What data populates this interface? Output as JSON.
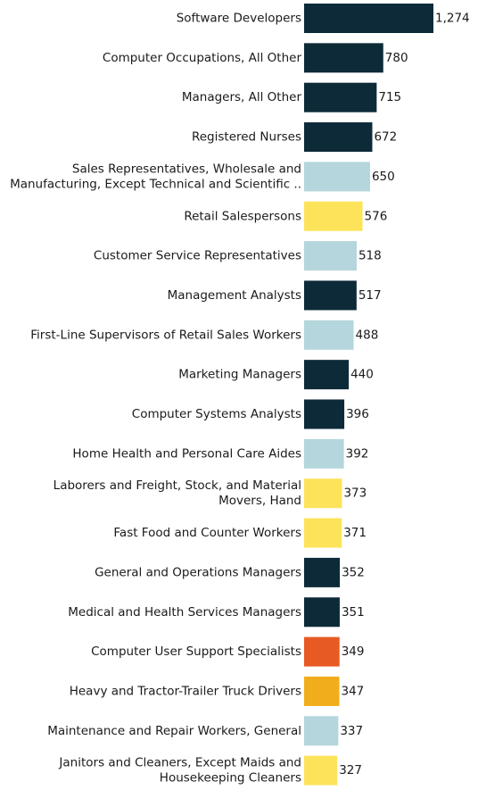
{
  "chart_data": {
    "type": "bar",
    "orientation": "horizontal",
    "categories": [
      [
        "Software Developers"
      ],
      [
        "Computer Occupations, All Other"
      ],
      [
        "Managers, All Other"
      ],
      [
        "Registered Nurses"
      ],
      [
        "Sales Representatives, Wholesale and",
        "Manufacturing, Except Technical and Scientific .."
      ],
      [
        "Retail Salespersons"
      ],
      [
        "Customer Service Representatives"
      ],
      [
        "Management Analysts"
      ],
      [
        "First-Line Supervisors of Retail Sales Workers"
      ],
      [
        "Marketing Managers"
      ],
      [
        "Computer Systems Analysts"
      ],
      [
        "Home Health and Personal Care Aides"
      ],
      [
        "Laborers and Freight, Stock, and Material",
        "Movers, Hand"
      ],
      [
        "Fast Food and Counter Workers"
      ],
      [
        "General and Operations Managers"
      ],
      [
        "Medical and Health Services Managers"
      ],
      [
        "Computer User Support Specialists"
      ],
      [
        "Heavy and Tractor-Trailer Truck Drivers"
      ],
      [
        "Maintenance and Repair Workers, General"
      ],
      [
        "Janitors and Cleaners, Except Maids and",
        "Housekeeping Cleaners"
      ]
    ],
    "values": [
      1274,
      780,
      715,
      672,
      650,
      576,
      518,
      517,
      488,
      440,
      396,
      392,
      373,
      371,
      352,
      351,
      349,
      347,
      337,
      327
    ],
    "value_labels": [
      "1,274",
      "780",
      "715",
      "672",
      "650",
      "576",
      "518",
      "517",
      "488",
      "440",
      "396",
      "392",
      "373",
      "371",
      "352",
      "351",
      "349",
      "347",
      "337",
      "327"
    ],
    "bar_colors": [
      "#0d2a38",
      "#0d2a38",
      "#0d2a38",
      "#0d2a38",
      "#b4d6dc",
      "#fde35a",
      "#b4d6dc",
      "#0d2a38",
      "#b4d6dc",
      "#0d2a38",
      "#0d2a38",
      "#b4d6dc",
      "#fde35a",
      "#fde35a",
      "#0d2a38",
      "#0d2a38",
      "#e85a24",
      "#f2ad1c",
      "#b4d6dc",
      "#fde35a"
    ],
    "xlim": [
      0,
      1274
    ],
    "grid": false,
    "legend": "none"
  }
}
